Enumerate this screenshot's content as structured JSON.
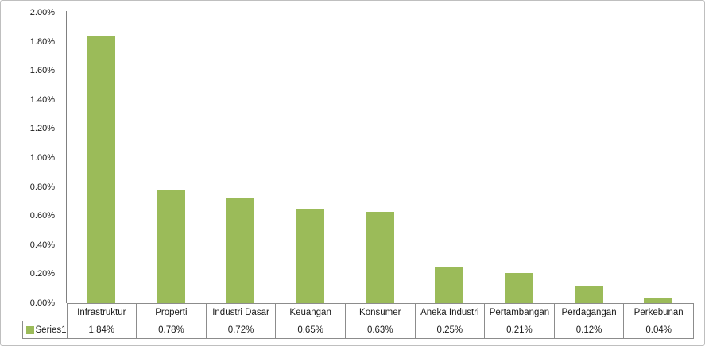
{
  "chart_data": {
    "type": "bar",
    "title": "",
    "xlabel": "",
    "ylabel": "",
    "categories": [
      "Infrastruktur",
      "Properti",
      "Industri Dasar",
      "Keuangan",
      "Konsumer",
      "Aneka Industri",
      "Pertambangan",
      "Perdagangan",
      "Perkebunan"
    ],
    "series": [
      {
        "name": "Series1",
        "values": [
          1.84,
          0.78,
          0.72,
          0.65,
          0.63,
          0.25,
          0.21,
          0.12,
          0.04
        ]
      }
    ],
    "value_labels": [
      "1.84%",
      "0.78%",
      "0.72%",
      "0.65%",
      "0.63%",
      "0.25%",
      "0.21%",
      "0.12%",
      "0.04%"
    ],
    "y_ticks": [
      "2.00%",
      "1.80%",
      "1.60%",
      "1.40%",
      "1.20%",
      "1.00%",
      "0.80%",
      "0.60%",
      "0.40%",
      "0.20%",
      "0.00%"
    ],
    "ylim": [
      0,
      2.0
    ],
    "grid": false,
    "legend_position": "data-table-left",
    "colors": {
      "bar": "#9bbb59",
      "axis_line": "#808080",
      "table_border": "#8c8c8c",
      "frame_border": "#bfbfbf",
      "text": "#1a1a1a"
    }
  }
}
